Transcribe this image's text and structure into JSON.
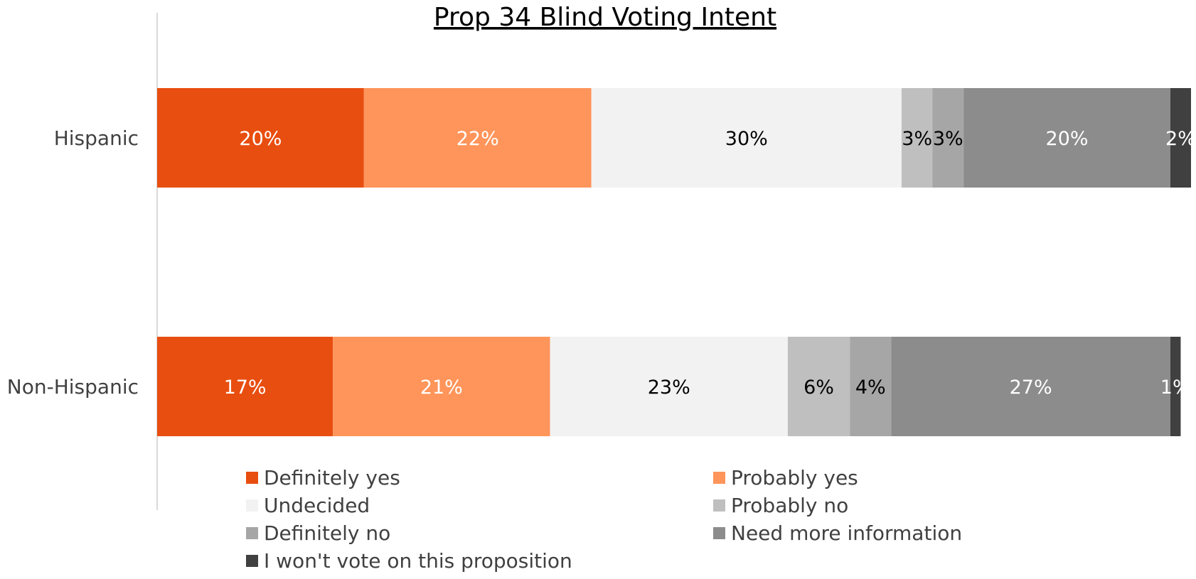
{
  "chart_data": {
    "type": "bar",
    "orientation": "horizontal",
    "stacked": true,
    "title": "Prop 34 Blind Voting Intent",
    "title_underlined": true,
    "categories": [
      "Hispanic",
      "Non-Hispanic"
    ],
    "series": [
      {
        "name": "Definitely yes",
        "color": "#E84E0F",
        "label_color": "#FFFFFF",
        "values": [
          20,
          17
        ],
        "labels": [
          "20%",
          "17%"
        ]
      },
      {
        "name": "Probably yes",
        "color": "#FF955A",
        "label_color": "#FFFFFF",
        "values": [
          22,
          21
        ],
        "labels": [
          "22%",
          "21%"
        ]
      },
      {
        "name": "Undecided",
        "color": "#F2F2F2",
        "label_color": "#000000",
        "values": [
          30,
          23
        ],
        "labels": [
          "30%",
          "23%"
        ]
      },
      {
        "name": "Probably no",
        "color": "#BFBFBF",
        "label_color": "#000000",
        "values": [
          3,
          6
        ],
        "labels": [
          "3%",
          "6%"
        ]
      },
      {
        "name": "Definitely no",
        "color": "#A6A6A6",
        "label_color": "#000000",
        "values": [
          3,
          4
        ],
        "labels": [
          "3%",
          "4%"
        ]
      },
      {
        "name": "Need more information",
        "color": "#8C8C8C",
        "label_color": "#FFFFFF",
        "values": [
          20,
          27
        ],
        "labels": [
          "20%",
          "27%"
        ]
      },
      {
        "name": "I won't vote on this proposition",
        "color": "#404040",
        "label_color": "#FFFFFF",
        "values": [
          2,
          1
        ],
        "labels": [
          "2%",
          "1%"
        ]
      }
    ],
    "value_unit": "%",
    "xlim": [
      0,
      100
    ],
    "legend_position": "bottom",
    "legend_columns": 2,
    "grid": false
  }
}
